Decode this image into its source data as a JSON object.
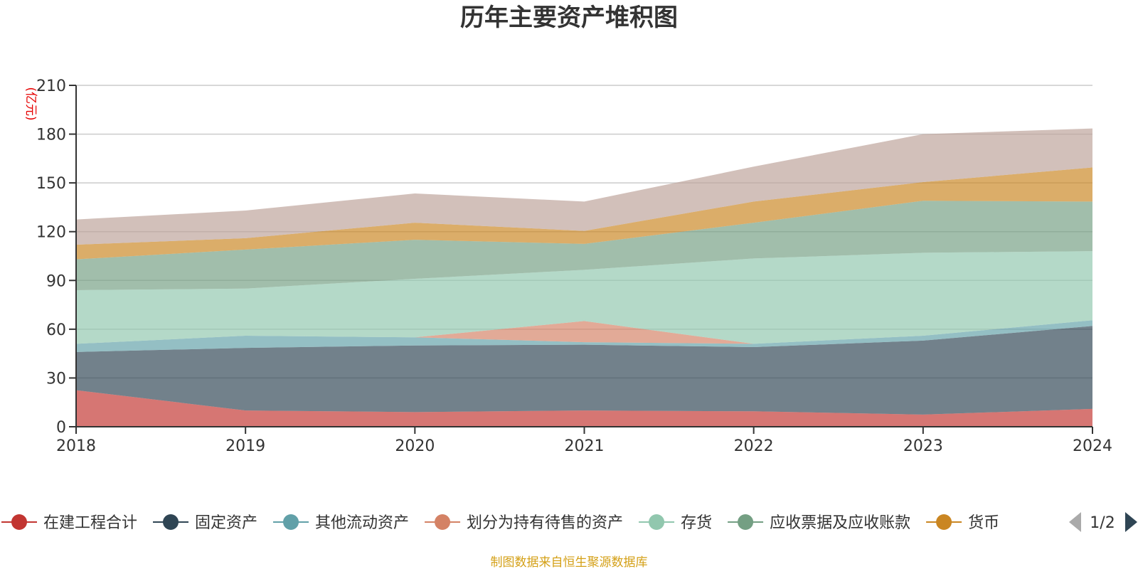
{
  "chart_data": {
    "type": "area",
    "stacked": true,
    "title": "历年主要资产堆积图",
    "unit_label": "(亿元)",
    "x": [
      "2018",
      "2019",
      "2020",
      "2021",
      "2022",
      "2023",
      "2024"
    ],
    "ylim": [
      0,
      210
    ],
    "yticks": [
      0,
      30,
      60,
      90,
      120,
      150,
      180,
      210
    ],
    "grid": true,
    "series": [
      {
        "name": "在建工程合计",
        "color": "#c23531",
        "values": [
          22.5,
          10,
          9,
          10,
          9.5,
          7.5,
          11
        ]
      },
      {
        "name": "固定资产",
        "color": "#2f4554",
        "values": [
          23.5,
          38.5,
          41,
          40.5,
          39.5,
          45.5,
          51
        ]
      },
      {
        "name": "其他流动资产",
        "color": "#61a0a8",
        "values": [
          5,
          7.5,
          5,
          1.5,
          2,
          3,
          3.5
        ]
      },
      {
        "name": "划分为持有待售的资产",
        "color": "#d48265",
        "values": [
          0,
          0,
          0,
          13,
          0,
          0,
          0
        ]
      },
      {
        "name": "存货",
        "color": "#91c7ae",
        "values": [
          33,
          29,
          36,
          31.5,
          52.5,
          51,
          42.5
        ]
      },
      {
        "name": "应收票据及应收账款",
        "color": "#749f83",
        "values": [
          19,
          24,
          24,
          16,
          22,
          32,
          30.5
        ]
      },
      {
        "name": "货币",
        "color": "#ca8622",
        "values": [
          9,
          7,
          10.5,
          8,
          13,
          11.5,
          21
        ]
      },
      {
        "name": "",
        "color": "#bda29a",
        "values": [
          15.5,
          17,
          18,
          18,
          21.5,
          29.5,
          24
        ]
      }
    ],
    "legend": {
      "placement": "bottom",
      "items": [
        "在建工程合计",
        "固定资产",
        "其他流动资产",
        "划分为持有待售的资产",
        "存货",
        "应收票据及应收账款",
        "货币"
      ],
      "page": "1/2"
    },
    "source": "制图数据来自恒生聚源数据库"
  }
}
